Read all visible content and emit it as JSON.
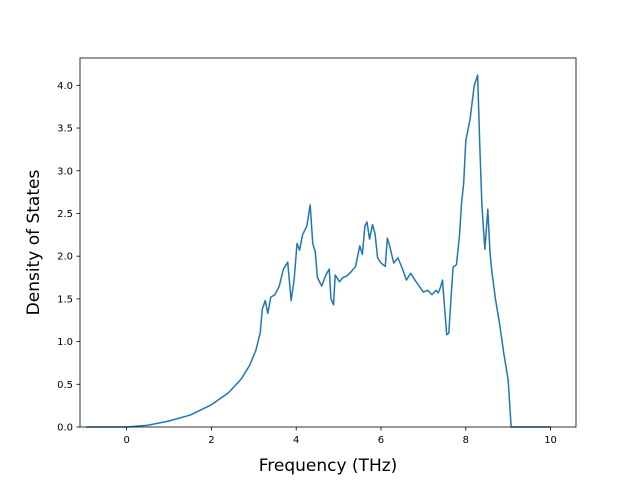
{
  "chart_data": {
    "type": "line",
    "title": "",
    "xlabel": "Frequency (THz)",
    "ylabel": "Density of States",
    "xlim": [
      -1.1,
      10.6
    ],
    "ylim": [
      0.0,
      4.32
    ],
    "xticks": [
      0,
      2,
      4,
      6,
      8,
      10
    ],
    "xtick_labels": [
      "0",
      "2",
      "4",
      "6",
      "8",
      "10"
    ],
    "yticks": [
      0.0,
      0.5,
      1.0,
      1.5,
      2.0,
      2.5,
      3.0,
      3.5,
      4.0
    ],
    "ytick_labels": [
      "0.0",
      "0.5",
      "1.0",
      "1.5",
      "2.0",
      "2.5",
      "3.0",
      "3.5",
      "4.0"
    ],
    "grid": false,
    "legend": "none",
    "series": [
      {
        "color": "#1f77b4",
        "x": [
          -0.95,
          0.0,
          0.5,
          1.0,
          1.5,
          2.0,
          2.4,
          2.7,
          2.9,
          3.05,
          3.15,
          3.2,
          3.27,
          3.33,
          3.4,
          3.5,
          3.6,
          3.7,
          3.8,
          3.88,
          3.95,
          4.02,
          4.08,
          4.15,
          4.25,
          4.33,
          4.39,
          4.45,
          4.5,
          4.6,
          4.7,
          4.78,
          4.82,
          4.88,
          4.92,
          5.02,
          5.1,
          5.2,
          5.3,
          5.4,
          5.5,
          5.56,
          5.62,
          5.67,
          5.73,
          5.8,
          5.86,
          5.92,
          6.0,
          6.1,
          6.15,
          6.2,
          6.3,
          6.4,
          6.5,
          6.6,
          6.7,
          6.8,
          6.9,
          7.0,
          7.1,
          7.2,
          7.3,
          7.35,
          7.4,
          7.45,
          7.55,
          7.6,
          7.65,
          7.7,
          7.78,
          7.85,
          7.9,
          7.95,
          8.0,
          8.1,
          8.2,
          8.28,
          8.33,
          8.38,
          8.45,
          8.52,
          8.57,
          8.62,
          8.7,
          8.8,
          8.9,
          9.0,
          9.07,
          9.15,
          9.5,
          10.0
        ],
        "values": [
          0.0,
          0.0,
          0.02,
          0.07,
          0.14,
          0.26,
          0.4,
          0.56,
          0.72,
          0.9,
          1.1,
          1.38,
          1.48,
          1.33,
          1.52,
          1.55,
          1.65,
          1.85,
          1.93,
          1.48,
          1.72,
          2.15,
          2.07,
          2.25,
          2.35,
          2.6,
          2.15,
          2.05,
          1.75,
          1.65,
          1.78,
          1.85,
          1.5,
          1.43,
          1.78,
          1.7,
          1.75,
          1.77,
          1.82,
          1.88,
          2.12,
          2.02,
          2.35,
          2.4,
          2.2,
          2.37,
          2.26,
          1.98,
          1.92,
          1.88,
          2.21,
          2.13,
          1.92,
          1.98,
          1.86,
          1.72,
          1.8,
          1.72,
          1.65,
          1.58,
          1.6,
          1.55,
          1.6,
          1.57,
          1.63,
          1.72,
          1.08,
          1.1,
          1.5,
          1.87,
          1.9,
          2.23,
          2.62,
          2.85,
          3.35,
          3.6,
          4.0,
          4.12,
          3.3,
          2.6,
          2.08,
          2.55,
          2.05,
          1.8,
          1.5,
          1.2,
          0.85,
          0.55,
          0.0,
          0.0,
          0.0,
          0.0
        ]
      }
    ]
  }
}
